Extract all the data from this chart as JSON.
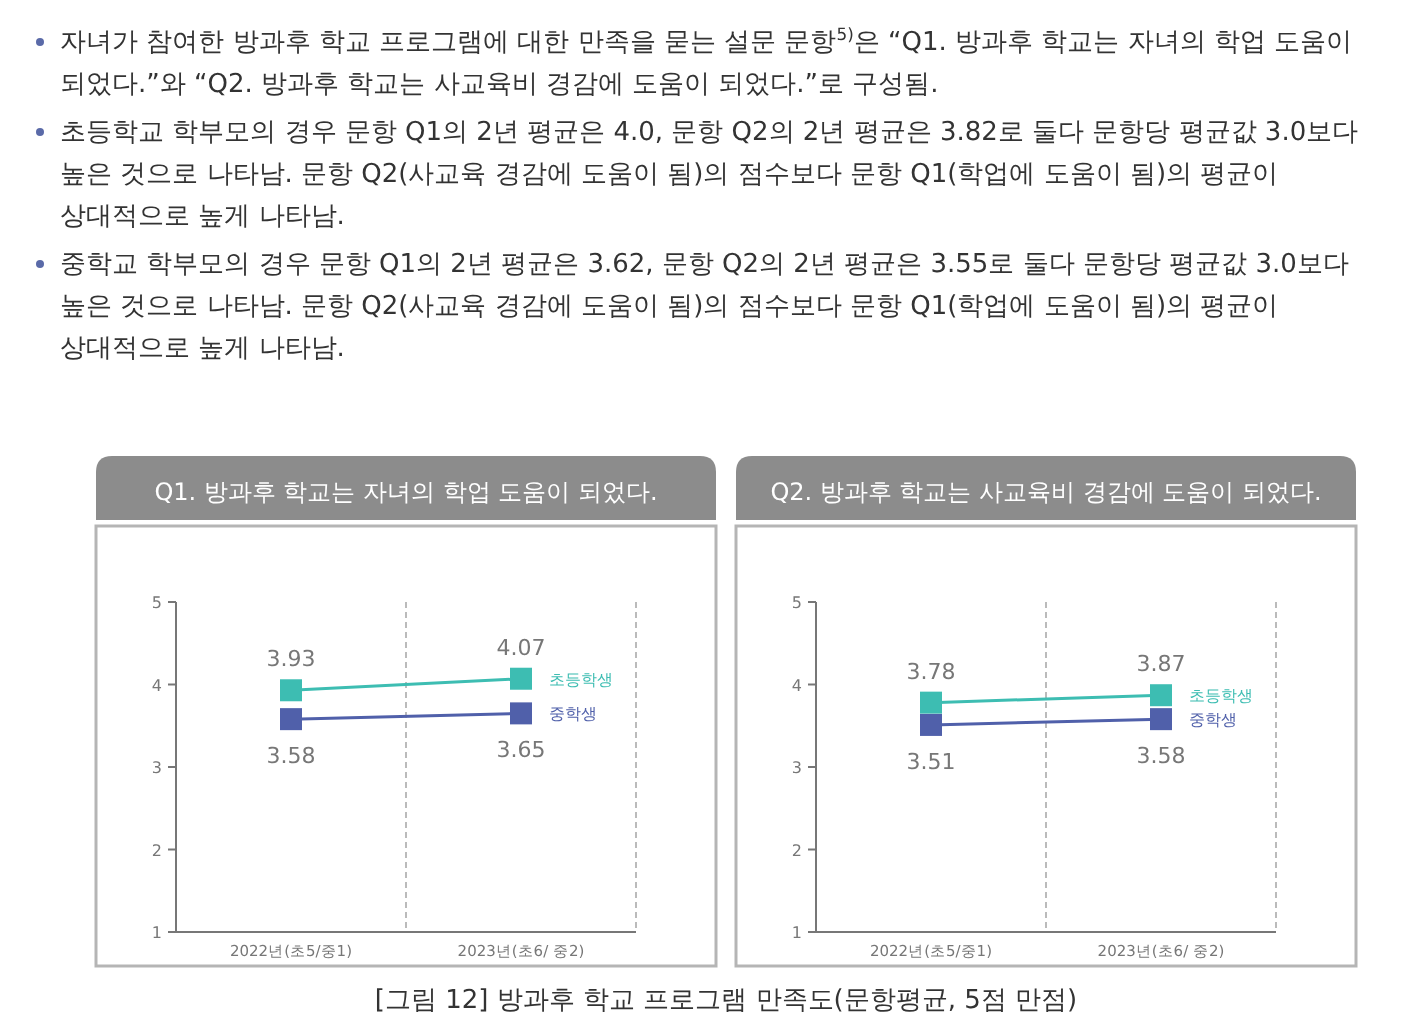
{
  "chart_data": [
    {
      "type": "other",
      "annotations": [
        "자녀가 참여한 방과후 학교 프로그램에 대한 만족을 묻는 설문 문항$^{5)}$은 “Q1. 방과후 학교는 자녀의 학업 도움이 되었다.”와 “Q2. 방과후 학교는 사교육비 경감에 도움이 되었다.”로 구성됨.",
        "초등학교 학부모의 경우 문항 Q1의 2년 평균은 4.0, 문항 Q2의 2년 평균은 3.82로 둘다 문항당 평균값 3.0보다 높은 것으로 나타남. 문항 Q2(사교육 경감에 도움이 됨)의 점수보다 문항 Q1(학업에 도움이 됨)의 평균이 상대적으로 높게 나타남.",
        "중학교 학부모의 경우 문항 Q1의 2년 평균은 3.62, 문항 Q2의 2년 평균은 3.55로 둘다 문항당 평균값 3.0보다 높은 것으로 나타남. 문항 Q2(사교육 경감에 도움이 됨)의 점수보다 문항 Q1(학업에 도움이 됨)의 평균이 상대적으로 높게 나타남."
      ]
    },
    {
      "type": "line",
      "title": "Q1. 방과후 학교는 자녀의 학업 도움이 되었다.",
      "categories": [
        "2022년(초5/중1)",
        "2023년(초6/ 중2)"
      ],
      "ylim": [
        1,
        5
      ],
      "yticks": [
        1,
        2,
        3,
        4,
        5
      ],
      "grid": "x",
      "marker": "square",
      "legend": "right",
      "data_labels": true,
      "series": [
        {
          "name": "초등학생",
          "color": "#3dbdb2",
          "values": [
            3.93,
            4.07
          ]
        },
        {
          "name": "중학생",
          "color": "#5060aa",
          "values": [
            3.58,
            3.65
          ]
        }
      ]
    },
    {
      "type": "line",
      "title": "Q2. 방과후 학교는 사교육비 경감에 도움이 되었다.",
      "categories": [
        "2022년(초5/중1)",
        "2023년(초6/ 중2)"
      ],
      "ylim": [
        1,
        5
      ],
      "yticks": [
        1,
        2,
        3,
        4,
        5
      ],
      "grid": "x",
      "marker": "square",
      "legend": "right",
      "data_labels": true,
      "series": [
        {
          "name": "초등학생",
          "color": "#3dbdb2",
          "values": [
            3.78,
            3.87
          ]
        },
        {
          "name": "중학생",
          "color": "#5060aa",
          "values": [
            3.51,
            3.58
          ]
        }
      ]
    },
    {
      "type": "other",
      "annotations": [
        "[그림 12] 방과후 학교 프로그램 만족도(문항평균, 5점 만점)"
      ]
    }
  ]
}
